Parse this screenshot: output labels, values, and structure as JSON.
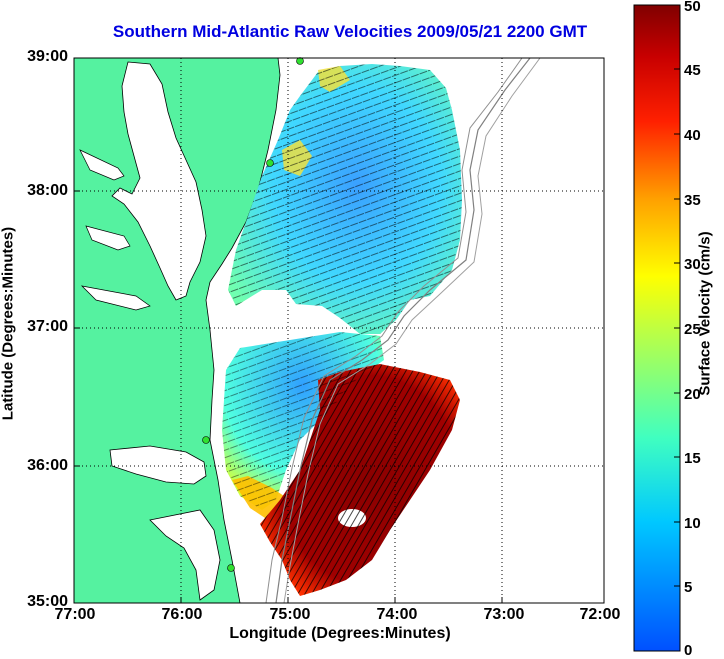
{
  "title": "Southern Mid-Atlantic Raw Velocities 2009/05/21 2200 GMT",
  "xlabel": "Longitude (Degrees:Minutes)",
  "ylabel": "Latitude (Degrees:Minutes)",
  "lat_ticks": [
    "39:00",
    "38:00",
    "37:00",
    "36:00",
    "35:00"
  ],
  "lon_ticks": [
    "77:00",
    "76:00",
    "75:00",
    "74:00",
    "73:00",
    "72:00"
  ],
  "colorbar": {
    "label": "Surface Velocity (cm/s)",
    "ticks": [
      "50",
      "45",
      "40",
      "35",
      "30",
      "25",
      "20",
      "15",
      "10",
      "5",
      "0"
    ],
    "range": [
      0,
      50
    ],
    "colormap": "jet"
  },
  "colors": {
    "title": "#0000e0",
    "land": "#55f2a0",
    "grid": "#000000"
  },
  "map": {
    "lon_range_deg_west": [
      77,
      72
    ],
    "lat_range_deg_north": [
      35,
      39
    ],
    "grid": "dotted",
    "features": [
      "land-mass",
      "coastline",
      "bathymetry-contours",
      "velocity-field",
      "velocity-vectors",
      "radar-sites"
    ]
  }
}
